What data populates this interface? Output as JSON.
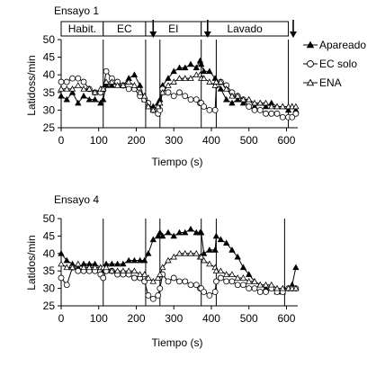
{
  "chart_data": [
    {
      "type": "line",
      "title": "Ensayo 1",
      "xlabel": "Tiempo (s)",
      "ylabel": "Latidoss/min",
      "xlim": [
        0,
        630
      ],
      "ylim": [
        25,
        50
      ],
      "xticks": [
        "0",
        "100",
        "200",
        "300",
        "400",
        "500",
        "600"
      ],
      "yticks": [
        "25",
        "30",
        "35",
        "40",
        "45",
        "50"
      ],
      "phases": [
        "Habit.",
        "EC",
        "EI",
        "Lavado"
      ],
      "phase_bounds": [
        0,
        112,
        225,
        373,
        413,
        630
      ],
      "event_lines": [
        112,
        225,
        263,
        373,
        413,
        605
      ],
      "arrows": [
        245,
        390,
        618
      ],
      "legend_position": "right",
      "series": [
        {
          "name": "Apareado",
          "marker": "filled-triangle",
          "x": [
            0,
            15,
            30,
            45,
            60,
            75,
            90,
            105,
            112,
            120,
            135,
            150,
            165,
            180,
            195,
            210,
            222,
            232,
            245,
            258,
            263,
            270,
            285,
            300,
            315,
            330,
            345,
            360,
            370,
            373,
            380,
            395,
            410,
            413,
            425,
            440,
            455,
            470,
            485,
            500,
            515,
            530,
            545,
            560,
            575,
            590,
            605,
            615,
            625
          ],
          "y": [
            34,
            33,
            35,
            32,
            34,
            33,
            33,
            32,
            33,
            37,
            37,
            38,
            37,
            39,
            40,
            37,
            33,
            31,
            31,
            32,
            33,
            37,
            39,
            41,
            42,
            42,
            43,
            42,
            44,
            43,
            41,
            41,
            39,
            38,
            36,
            33,
            32,
            33,
            32,
            33,
            31,
            32,
            31,
            32,
            31,
            31,
            30,
            31,
            30
          ]
        },
        {
          "name": "EC solo",
          "marker": "open-circle",
          "x": [
            0,
            15,
            30,
            45,
            60,
            75,
            90,
            105,
            112,
            120,
            135,
            150,
            165,
            180,
            195,
            210,
            222,
            232,
            245,
            258,
            263,
            270,
            285,
            300,
            315,
            330,
            345,
            360,
            370,
            373,
            380,
            395,
            410,
            413,
            425,
            440,
            455,
            470,
            485,
            500,
            515,
            530,
            545,
            560,
            575,
            590,
            605,
            615,
            625
          ],
          "y": [
            38,
            38,
            39,
            39,
            38,
            36,
            35,
            35,
            36,
            41,
            39,
            38,
            37,
            36,
            36,
            34,
            33,
            32,
            30,
            29,
            30,
            36,
            35,
            34,
            35,
            34,
            33,
            33,
            32,
            32,
            31,
            30,
            30,
            37,
            38,
            37,
            35,
            34,
            33,
            31,
            30,
            30,
            29,
            29,
            29,
            28,
            28,
            28,
            29
          ]
        },
        {
          "name": "ENA",
          "marker": "open-triangle",
          "x": [
            0,
            15,
            30,
            45,
            60,
            75,
            90,
            105,
            112,
            120,
            135,
            150,
            165,
            180,
            195,
            210,
            222,
            232,
            245,
            258,
            263,
            270,
            285,
            300,
            315,
            330,
            345,
            360,
            370,
            373,
            380,
            395,
            410,
            413,
            425,
            440,
            455,
            470,
            485,
            500,
            515,
            530,
            545,
            560,
            575,
            590,
            605,
            615,
            625
          ],
          "y": [
            36,
            36,
            36,
            37,
            36,
            36,
            35,
            36,
            36,
            38,
            38,
            37,
            37,
            38,
            37,
            35,
            34,
            31,
            30,
            31,
            32,
            35,
            37,
            38,
            39,
            39,
            39,
            40,
            40,
            39,
            39,
            38,
            37,
            38,
            38,
            36,
            34,
            34,
            33,
            33,
            32,
            32,
            32,
            31,
            31,
            31,
            31,
            31,
            31
          ]
        }
      ]
    },
    {
      "type": "line",
      "title": "Ensayo 4",
      "xlabel": "Tiempo (s)",
      "ylabel": "Latidos/min",
      "xlim": [
        0,
        630
      ],
      "ylim": [
        25,
        50
      ],
      "xticks": [
        "0",
        "100",
        "200",
        "300",
        "400",
        "500",
        "600"
      ],
      "yticks": [
        "25",
        "30",
        "35",
        "40",
        "45",
        "50"
      ],
      "event_lines": [
        112,
        225,
        263,
        373,
        413,
        595
      ],
      "series": [
        {
          "name": "Apareado",
          "marker": "filled-triangle",
          "x": [
            0,
            15,
            30,
            45,
            60,
            75,
            90,
            105,
            112,
            120,
            135,
            150,
            165,
            180,
            195,
            210,
            222,
            232,
            245,
            258,
            263,
            270,
            285,
            300,
            315,
            330,
            345,
            360,
            370,
            373,
            380,
            395,
            410,
            413,
            425,
            440,
            455,
            470,
            485,
            500,
            515,
            530,
            545,
            560,
            575,
            590,
            605,
            615,
            625
          ],
          "y": [
            40,
            38,
            37,
            36,
            37,
            37,
            37,
            36,
            35,
            37,
            37,
            37,
            37,
            38,
            38,
            38,
            38,
            40,
            44,
            45,
            46,
            45,
            46,
            45,
            46,
            46,
            47,
            46,
            46,
            46,
            40,
            41,
            41,
            45,
            44,
            43,
            41,
            39,
            36,
            34,
            32,
            31,
            30,
            30,
            29,
            29,
            30,
            31,
            36
          ]
        },
        {
          "name": "EC solo",
          "marker": "open-circle",
          "x": [
            0,
            15,
            30,
            45,
            60,
            75,
            90,
            105,
            112,
            120,
            135,
            150,
            165,
            180,
            195,
            210,
            222,
            232,
            245,
            258,
            263,
            270,
            285,
            300,
            315,
            330,
            345,
            360,
            370,
            373,
            380,
            395,
            410,
            413,
            425,
            440,
            455,
            470,
            485,
            500,
            515,
            530,
            545,
            560,
            575,
            590,
            605,
            615,
            625
          ],
          "y": [
            33,
            31,
            36,
            35,
            35,
            35,
            35,
            34,
            33,
            35,
            35,
            34,
            34,
            34,
            33,
            33,
            32,
            28,
            27,
            28,
            30,
            34,
            32,
            33,
            32,
            32,
            31,
            31,
            30,
            30,
            29,
            28,
            29,
            32,
            33,
            32,
            32,
            31,
            31,
            30,
            30,
            29,
            29,
            30,
            29,
            29,
            30,
            30,
            30
          ]
        },
        {
          "name": "ENA",
          "marker": "open-triangle",
          "x": [
            0,
            15,
            30,
            45,
            60,
            75,
            90,
            105,
            112,
            120,
            135,
            150,
            165,
            180,
            195,
            210,
            222,
            232,
            245,
            258,
            263,
            270,
            285,
            300,
            315,
            330,
            345,
            360,
            370,
            373,
            380,
            395,
            410,
            413,
            425,
            440,
            455,
            470,
            485,
            500,
            515,
            530,
            545,
            560,
            575,
            590,
            605,
            615,
            625
          ],
          "y": [
            37,
            36,
            36,
            37,
            36,
            36,
            36,
            36,
            36,
            36,
            35,
            35,
            35,
            35,
            35,
            34,
            34,
            33,
            32,
            33,
            34,
            36,
            38,
            39,
            40,
            40,
            40,
            40,
            39,
            39,
            38,
            37,
            36,
            35,
            35,
            34,
            34,
            33,
            33,
            32,
            32,
            31,
            31,
            31,
            30,
            30,
            30,
            30,
            30
          ]
        }
      ]
    }
  ]
}
